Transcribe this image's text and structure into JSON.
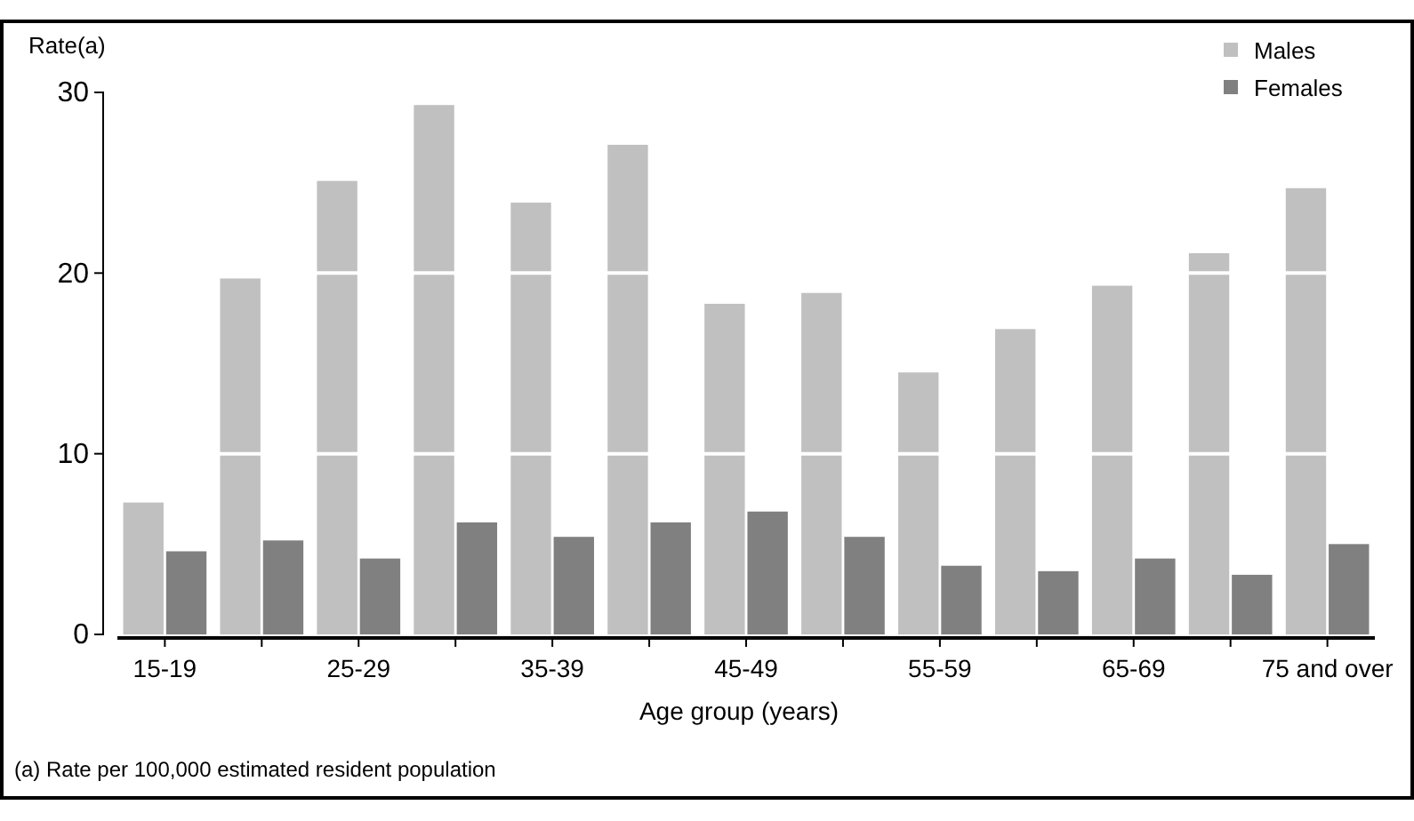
{
  "chart_data": {
    "type": "bar",
    "ylabel": "Rate(a)",
    "xlabel": "Age group (years)",
    "annotations": [
      "(a) Rate per 100,000 estimated resident population"
    ],
    "categories": [
      "15-19",
      null,
      "25-29",
      null,
      "35-39",
      null,
      "45-49",
      null,
      "55-59",
      null,
      "65-69",
      null,
      "75 and over"
    ],
    "series": [
      {
        "name": "Males",
        "color": "#c0c0c0",
        "values": [
          7.3,
          19.7,
          25.1,
          29.3,
          23.9,
          27.1,
          18.3,
          18.9,
          14.5,
          16.9,
          19.3,
          21.1,
          24.7
        ]
      },
      {
        "name": "Females",
        "color": "#808080",
        "values": [
          4.6,
          5.2,
          4.2,
          6.2,
          5.4,
          6.2,
          6.8,
          5.4,
          3.8,
          3.5,
          4.2,
          3.3,
          5.0
        ]
      }
    ],
    "ylim": [
      0,
      30
    ],
    "yticks": [
      0,
      10,
      20,
      30
    ],
    "grid": "y",
    "legend": "top right"
  }
}
